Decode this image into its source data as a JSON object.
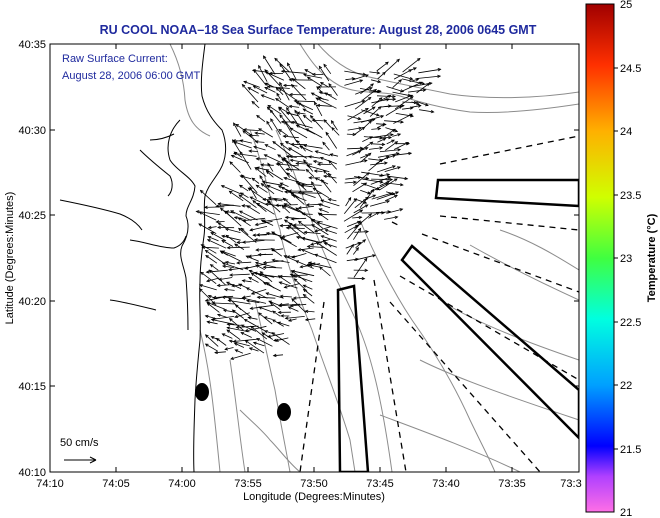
{
  "title": "RU COOL  NOAA–18  Sea Surface Temperature:  August 28, 2006 0645 GMT",
  "annotation": {
    "line1": "Raw Surface Current:",
    "line2": "August 28, 2006 06:00 GMT"
  },
  "scale_label": "50 cm/s",
  "axes": {
    "xlabel": "Longitude (Degrees:Minutes)",
    "ylabel": "Latitude (Degrees:Minutes)",
    "x_ticks": [
      "74:10",
      "74:05",
      "74:00",
      "73:55",
      "73:50",
      "73:45",
      "73:40",
      "73:35",
      "73:3"
    ],
    "y_ticks": [
      "40:35",
      "40:30",
      "40:25",
      "40:20",
      "40:15",
      "40:10"
    ]
  },
  "colorbar": {
    "label": "Temperature (°C)",
    "ticks": [
      "25",
      "24.5",
      "24",
      "23.5",
      "23",
      "22.5",
      "22",
      "21.5",
      "21"
    ],
    "range": [
      21,
      25
    ]
  },
  "colors": {
    "title": "#1f2a9e",
    "coast": "#000000",
    "contour": "#8c8c8c"
  }
}
